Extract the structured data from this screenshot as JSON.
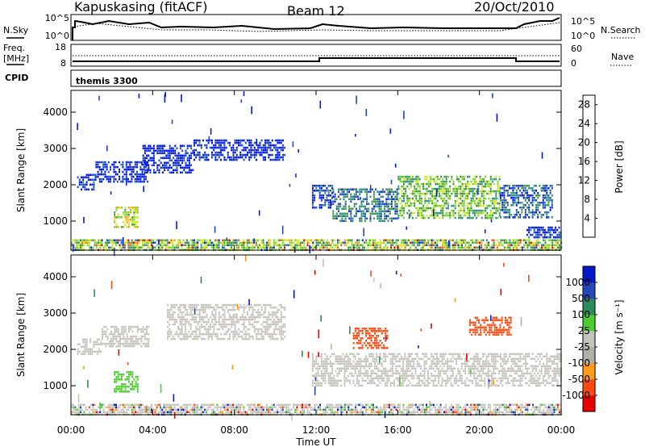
{
  "header": {
    "station": "Kapuskasing (fitACF)",
    "beam": "Beam 12",
    "date": "20/Oct/2010"
  },
  "top_panels": {
    "nsky": {
      "label": "N.Sky",
      "ticks_left": [
        "10^5",
        "10^0"
      ],
      "ticks_right": [
        "10^5",
        "10^0"
      ],
      "right_label": "N.Search"
    },
    "freq": {
      "label_line1": "Freq.",
      "label_line2": "[MHz]",
      "ticks_left": [
        "18",
        "8"
      ],
      "ticks_right": [
        "60",
        "0"
      ],
      "right_label": "Nave"
    },
    "cpid": {
      "label": "CPID",
      "value": "themis 3300"
    }
  },
  "colors": {
    "power_scale": [
      "#0018e6",
      "#1f47c2",
      "#2f8a8a",
      "#3e9a3e",
      "#7fd42a",
      "#d6e61a",
      "#f5a31a",
      "#f06010",
      "#e60000"
    ],
    "velocity_scale": [
      "#e60000",
      "#ff4a10",
      "#ff9a1a",
      "#b0b0a6",
      "#c4c4bc",
      "#4ccc30",
      "#2e8a5a",
      "#2748b8",
      "#001ac8"
    ],
    "ground_scatter": "#bdbdb5"
  },
  "chart_data": [
    {
      "type": "heatmap",
      "title": "",
      "ylabel": "Slant Range [km]",
      "xlabel": "",
      "ylim": [
        200,
        4600
      ],
      "yticks": [
        "1000",
        "2000",
        "3000",
        "4000"
      ],
      "xticks": [
        "00:00",
        "04:00",
        "08:00",
        "12:00",
        "16:00",
        "20:00",
        "00:00"
      ],
      "colorbar_label": "Power [dB]",
      "colorbar_ticks": [
        "4",
        "8",
        "12",
        "16",
        "20",
        "24",
        "28"
      ],
      "colorbar_range": [
        0,
        30
      ],
      "regions": [
        {
          "start_h": 0.3,
          "end_h": 1.2,
          "min_km": 1850,
          "max_km": 2300,
          "level": 0.08
        },
        {
          "start_h": 1.2,
          "end_h": 3.8,
          "min_km": 2050,
          "max_km": 2650,
          "level": 0.06
        },
        {
          "start_h": 2.1,
          "end_h": 3.3,
          "min_km": 850,
          "max_km": 1400,
          "level": 0.55
        },
        {
          "start_h": 3.5,
          "end_h": 6.0,
          "min_km": 2300,
          "max_km": 3100,
          "level": 0.05
        },
        {
          "start_h": 6.0,
          "end_h": 10.5,
          "min_km": 2650,
          "max_km": 3250,
          "level": 0.05
        },
        {
          "start_h": 11.8,
          "end_h": 12.8,
          "min_km": 1350,
          "max_km": 2000,
          "level": 0.1
        },
        {
          "start_h": 12.8,
          "end_h": 16.0,
          "min_km": 1000,
          "max_km": 1900,
          "level": 0.25
        },
        {
          "start_h": 16.0,
          "end_h": 21.0,
          "min_km": 1050,
          "max_km": 2250,
          "level": 0.45
        },
        {
          "start_h": 21.0,
          "end_h": 23.6,
          "min_km": 1100,
          "max_km": 2000,
          "level": 0.2
        },
        {
          "start_h": 22.3,
          "end_h": 24.0,
          "min_km": 550,
          "max_km": 850,
          "level": 0.08
        },
        {
          "start_h": 0.0,
          "end_h": 24.0,
          "min_km": 200,
          "max_km": 500,
          "level": 0.5
        }
      ]
    },
    {
      "type": "heatmap",
      "title": "",
      "ylabel": "Slant Range [km]",
      "xlabel": "Time UT",
      "ylim": [
        200,
        4600
      ],
      "yticks": [
        "1000",
        "2000",
        "3000",
        "4000"
      ],
      "xticks": [
        "00:00",
        "04:00",
        "08:00",
        "12:00",
        "16:00",
        "20:00",
        "00:00"
      ],
      "colorbar_label": "Velocity [m s⁻¹]",
      "colorbar_ticks": [
        "1000",
        "500",
        "100",
        "25",
        "-25",
        "-100",
        "-500",
        "-1000"
      ],
      "colorbar_range": [
        -1000,
        1000
      ],
      "regions": [
        {
          "start_h": 0.3,
          "end_h": 1.5,
          "min_km": 1850,
          "max_km": 2300,
          "velocity": 0
        },
        {
          "start_h": 1.5,
          "end_h": 3.8,
          "min_km": 2050,
          "max_km": 2650,
          "velocity": 0
        },
        {
          "start_h": 2.1,
          "end_h": 3.3,
          "min_km": 850,
          "max_km": 1400,
          "velocity": 60
        },
        {
          "start_h": 4.7,
          "end_h": 10.5,
          "min_km": 2300,
          "max_km": 3250,
          "velocity": 0
        },
        {
          "start_h": 11.8,
          "end_h": 24.0,
          "min_km": 1000,
          "max_km": 1900,
          "velocity": 0
        },
        {
          "start_h": 13.8,
          "end_h": 15.5,
          "min_km": 2000,
          "max_km": 2600,
          "velocity": -150
        },
        {
          "start_h": 19.5,
          "end_h": 21.5,
          "min_km": 2400,
          "max_km": 2900,
          "velocity": -150
        },
        {
          "start_h": 0.0,
          "end_h": 24.0,
          "min_km": 200,
          "max_km": 500,
          "velocity": 0
        }
      ]
    }
  ]
}
